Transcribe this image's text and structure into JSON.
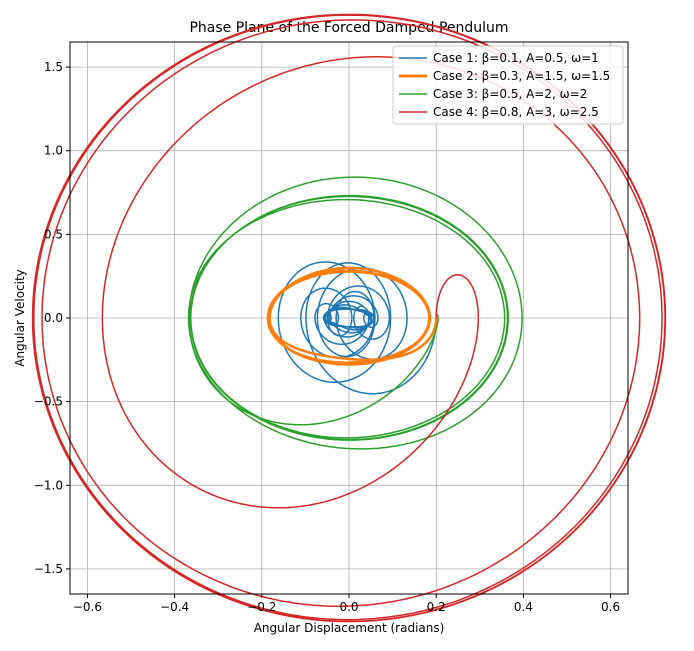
{
  "chart_data": {
    "type": "line",
    "title": "Phase Plane of the Forced Damped Pendulum",
    "xlabel": "Angular Displacement (radians)",
    "ylabel": "Angular Velocity",
    "xlim": [
      -0.64,
      0.64
    ],
    "ylim": [
      -1.65,
      1.65
    ],
    "xticks": [
      -0.6,
      -0.4,
      -0.2,
      0.0,
      0.2,
      0.4,
      0.6
    ],
    "xtick_labels": [
      "−0.6",
      "−0.4",
      "−0.2",
      "0.0",
      "0.2",
      "0.4",
      "0.6"
    ],
    "yticks": [
      -1.5,
      -1.0,
      -0.5,
      0.0,
      0.5,
      1.0,
      1.5
    ],
    "ytick_labels": [
      "−1.5",
      "−1.0",
      "−0.5",
      "0.0",
      "0.5",
      "1.0",
      "1.5"
    ],
    "grid": true,
    "legend_position": "top-right",
    "series": [
      {
        "name": "Case 1: β=0.1, A=0.5, ω=1",
        "color": "#1f77b4"
      },
      {
        "name": "Case 2: β=0.3, A=1.5, ω=1.5",
        "color": "#ff7f0e"
      },
      {
        "name": "Case 3: β=0.5, A=2, ω=2",
        "color": "#2ca02c"
      },
      {
        "name": "Case 4: β=0.8, A=3, ω=2.5",
        "color": "#d62728"
      }
    ]
  }
}
